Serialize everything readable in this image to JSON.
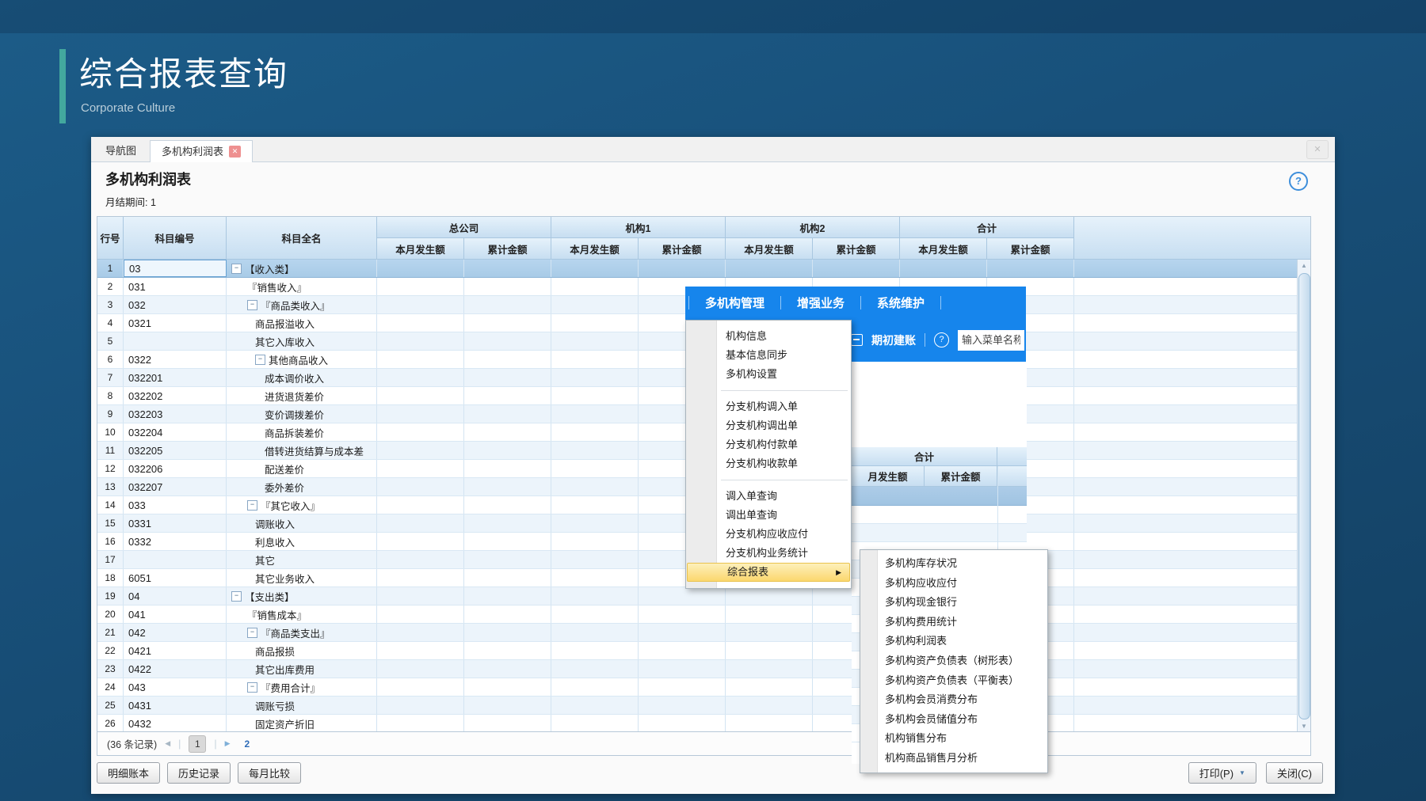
{
  "header": {
    "title": "综合报表查询",
    "subtitle": "Corporate Culture"
  },
  "icons": {
    "close": "✕",
    "win_close": "✕",
    "help": "?",
    "collapse": "−",
    "submenu_arrow": "▶",
    "prev": "◀",
    "next": "▶",
    "dropdown": "▼",
    "scroll_up": "▲",
    "scroll_down": "▼",
    "toolbar_help": "?",
    "pager_sep": "|"
  },
  "window": {
    "tabs": [
      {
        "label": "导航图"
      },
      {
        "label": "多机构利润表"
      }
    ],
    "report_title": "多机构利润表",
    "period_label": "月结期间: 1"
  },
  "table": {
    "fixed_headers": [
      "行号",
      "科目编号",
      "科目全名"
    ],
    "groups": [
      "总公司",
      "机构1",
      "机构2",
      "合计"
    ],
    "subcolumns": [
      "本月发生额",
      "累计金额"
    ],
    "rows": [
      {
        "no": 1,
        "code": "03",
        "name": "【收入类】",
        "level": 0,
        "expand": true,
        "selected": true
      },
      {
        "no": 2,
        "code": "031",
        "name": "『销售收入』",
        "level": 1,
        "expand": false
      },
      {
        "no": 3,
        "code": "032",
        "name": "『商品类收入』",
        "level": 1,
        "expand": true
      },
      {
        "no": 4,
        "code": "0321",
        "name": "商品报溢收入",
        "level": 2,
        "expand": false
      },
      {
        "no": 5,
        "code": "",
        "name": "其它入库收入",
        "level": 2,
        "expand": false
      },
      {
        "no": 6,
        "code": "0322",
        "name": "其他商品收入",
        "level": 2,
        "expand": true
      },
      {
        "no": 7,
        "code": "032201",
        "name": "成本调价收入",
        "level": 3,
        "expand": false
      },
      {
        "no": 8,
        "code": "032202",
        "name": "进货退货差价",
        "level": 3,
        "expand": false
      },
      {
        "no": 9,
        "code": "032203",
        "name": "变价调拨差价",
        "level": 3,
        "expand": false
      },
      {
        "no": 10,
        "code": "032204",
        "name": "商品拆装差价",
        "level": 3,
        "expand": false
      },
      {
        "no": 11,
        "code": "032205",
        "name": "借转进货结算与成本差",
        "level": 3,
        "expand": false
      },
      {
        "no": 12,
        "code": "032206",
        "name": "配送差价",
        "level": 3,
        "expand": false
      },
      {
        "no": 13,
        "code": "032207",
        "name": "委外差价",
        "level": 3,
        "expand": false
      },
      {
        "no": 14,
        "code": "033",
        "name": "『其它收入』",
        "level": 1,
        "expand": true
      },
      {
        "no": 15,
        "code": "0331",
        "name": "调账收入",
        "level": 2,
        "expand": false
      },
      {
        "no": 16,
        "code": "0332",
        "name": "利息收入",
        "level": 2,
        "expand": false
      },
      {
        "no": 17,
        "code": "",
        "name": "其它",
        "level": 2,
        "expand": false
      },
      {
        "no": 18,
        "code": "6051",
        "name": "其它业务收入",
        "level": 2,
        "expand": false
      },
      {
        "no": 19,
        "code": "04",
        "name": "【支出类】",
        "level": 0,
        "expand": true
      },
      {
        "no": 20,
        "code": "041",
        "name": "『销售成本』",
        "level": 1,
        "expand": false
      },
      {
        "no": 21,
        "code": "042",
        "name": "『商品类支出』",
        "level": 1,
        "expand": true
      },
      {
        "no": 22,
        "code": "0421",
        "name": "商品报损",
        "level": 2,
        "expand": false
      },
      {
        "no": 23,
        "code": "0422",
        "name": "其它出库费用",
        "level": 2,
        "expand": false
      },
      {
        "no": 24,
        "code": "043",
        "name": "『费用合计』",
        "level": 1,
        "expand": true
      },
      {
        "no": 25,
        "code": "0431",
        "name": "调账亏损",
        "level": 2,
        "expand": false
      },
      {
        "no": 26,
        "code": "0432",
        "name": "固定资产折旧",
        "level": 2,
        "expand": false
      }
    ]
  },
  "pagination": {
    "records": "(36 条记录)",
    "current": "1",
    "next_label": "2"
  },
  "footer": {
    "left_buttons": [
      "明细账本",
      "历史记录",
      "每月比较"
    ],
    "print_label": "打印(P)",
    "close_label": "关闭(C)"
  },
  "popup": {
    "menubar": [
      "多机构管理",
      "增强业务",
      "系统维护"
    ],
    "toolbar": {
      "button_label": "期初建账",
      "search_placeholder": "输入菜单名称"
    },
    "menu_items": [
      {
        "label": "机构信息"
      },
      {
        "label": "基本信息同步"
      },
      {
        "label": "多机构设置"
      },
      {
        "sep": true
      },
      {
        "label": "分支机构调入单"
      },
      {
        "label": "分支机构调出单"
      },
      {
        "label": "分支机构付款单"
      },
      {
        "label": "分支机构收款单"
      },
      {
        "sep": true
      },
      {
        "label": "调入单查询"
      },
      {
        "label": "调出单查询"
      },
      {
        "label": "分支机构应收应付"
      },
      {
        "label": "分支机构业务统计"
      },
      {
        "label": "综合报表",
        "highlighted": true,
        "has_submenu": true
      }
    ],
    "submenu_items": [
      "多机构库存状况",
      "多机构应收应付",
      "多机构现金银行",
      "多机构费用统计",
      "多机构利润表",
      "多机构资产负债表（树形表）",
      "多机构资产负债表（平衡表）",
      "多机构会员消费分布",
      "多机构会员储值分布",
      "机构销售分布",
      "机构商品销售月分析"
    ]
  },
  "background_window": {
    "group_header": "合计",
    "subcolumns": [
      "月发生额",
      "累计金额"
    ]
  }
}
